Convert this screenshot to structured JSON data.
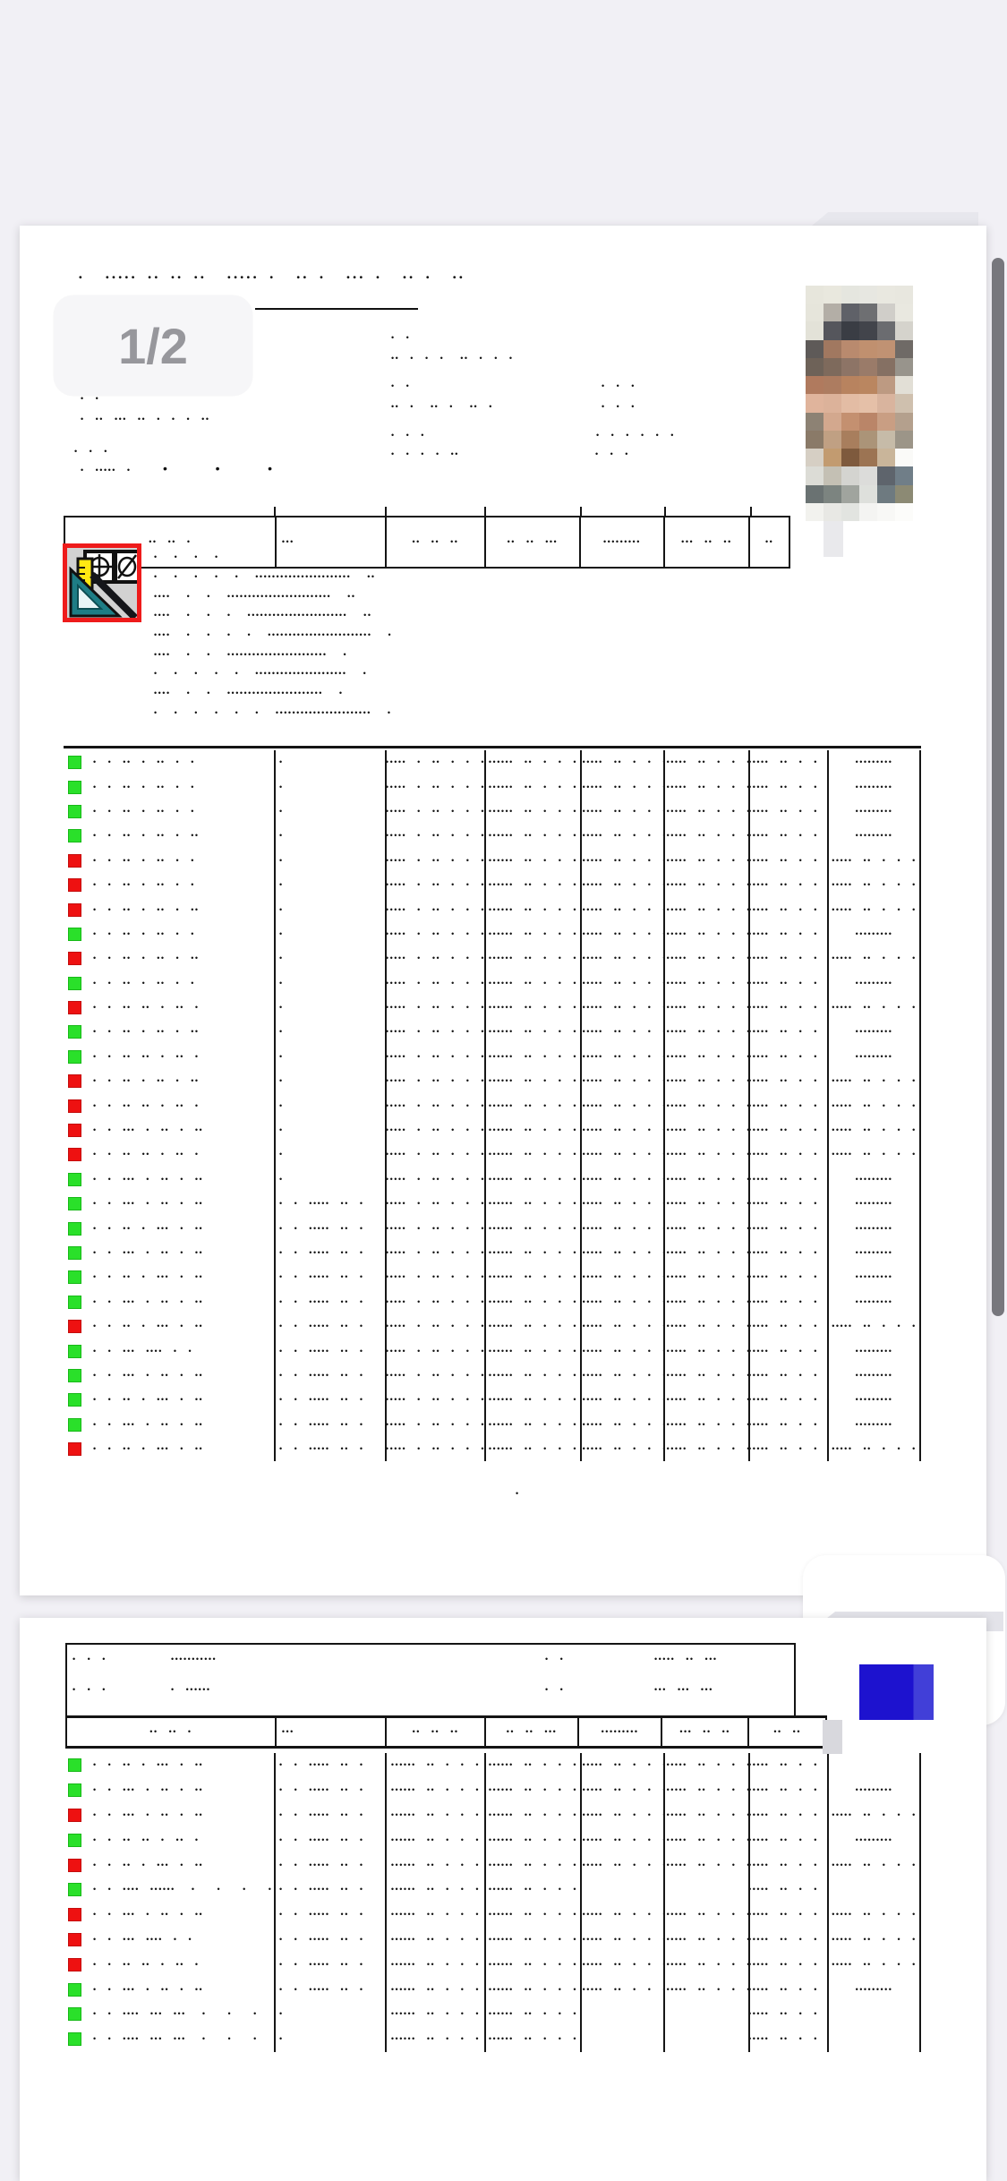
{
  "viewer": {
    "page_indicator": "1/2"
  },
  "colors": {
    "background": "#f1f0f5",
    "page": "#ffffff",
    "status_green": "#2ae02a",
    "status_red": "#ee1111",
    "redaction_blue": "#1d12cf",
    "scrollbar": "#77777d",
    "selection_border": "#ee1b1b",
    "table_line": "#161616"
  },
  "patterns": {
    "dot": "•",
    "c1a": "•  •  ••  •  ••  •  •",
    "c1b": "•  •  ••  •  ••  •  ••",
    "c1c": "•  •  ••  ••  •  ••  •",
    "c1d": "•  •  •••  •  ••  •  ••",
    "c1e": "•  •  ••  •  •••  •  ••",
    "c1f": "•  •  •••  ••••  •  •",
    "c1w": "•  •  ••••  ••••••   •    •    •    •",
    "c1x": "•  •  ••••  •••  •••   •    •    •",
    "c2p": "•  •  •••••  ••  •",
    "midA": "•••••  •  ••  •  •  •",
    "midB": "••••••  ••  •  •  •",
    "short": "•••••••••",
    "long": "•••••  ••  •  •  •"
  },
  "page1": {
    "title_dots": "•  ••••• •• •• ••  ••••• •  •• •  ••• •  •• •  ••",
    "header_left": {
      "l1": "•  •",
      "l2": "•  ••  •••  ••  •  •  •  ••",
      "l3": "•  •  •",
      "l4a": "•  •••••  •",
      "l4b": "•   •   •"
    },
    "header_mid": {
      "m1": "•  •",
      "m2": "••  •  •  •   ••  •  •  •",
      "m3": "•  •",
      "m4": "••  •   ••  •   ••  •",
      "m5": "•  •  •",
      "m6": "•  •  •  •  ••"
    },
    "header_right": {
      "r1": "•  •  •",
      "r2": "•  •  •",
      "r3": "•  •  •  •  •  •",
      "r4": "•  •  •"
    },
    "info_labels": [
      "••  ••  •",
      "•••",
      "••  ••  ••",
      "••  ••  •••",
      "•••••••••",
      "•••  ••  ••",
      "••"
    ],
    "icon_block": {
      "icon": "drafting-tools-ole-object",
      "lines": [
        "•   •   •   •",
        "•   •   •   •   •   •••••••••••••••••••••••   ••",
        "••••   •   •   •••••••••••••••••••••••••   ••",
        "••••   •   •   •   ••••••••••••••••••••••••   ••",
        "••••   •   •   •   •   •••••••••••••••••••••••••   •",
        "••••   •   •   ••••••••••••••••••••••••   •",
        "•   •   •   •   •   ••••••••••••••••••••••   •",
        "••••   •   •   •••••••••••••••••••••••   •",
        "•   •   •   •   •   •   •••••••••••••••••••••••   •"
      ]
    },
    "photo": {
      "cells": [
        [
          "#e7e6dc",
          "#e9e8de",
          "#e5e6df",
          "#e7e7e1",
          "#e9e8e0",
          "#e8e7df"
        ],
        [
          "#e6e5db",
          "#b3aea6",
          "#5f6168",
          "#6e6f72",
          "#d0cec9",
          "#e9e8e0"
        ],
        [
          "#e3e2d8",
          "#55565c",
          "#3a3d44",
          "#42444b",
          "#6b6c70",
          "#d5d3cc"
        ],
        [
          "#5e5a58",
          "#a17860",
          "#b98a6e",
          "#c0906f",
          "#c09273",
          "#6f6a66"
        ],
        [
          "#6e6258",
          "#7e6a5c",
          "#8d7466",
          "#9a7b69",
          "#857063",
          "#98948c"
        ],
        [
          "#b07a5e",
          "#ad7c60",
          "#b8835f",
          "#ba8660",
          "#bd9a82",
          "#e2dfd6"
        ],
        [
          "#e0b49c",
          "#dcb29a",
          "#e3bca4",
          "#e5c0a8",
          "#d9b49e",
          "#cfc0ae"
        ],
        [
          "#8d8274",
          "#d3a88e",
          "#c49070",
          "#ba8568",
          "#c99e83",
          "#b4a08d"
        ],
        [
          "#8a7a68",
          "#c0a083",
          "#a87e5d",
          "#ab9478",
          "#c6bba8",
          "#9c9588"
        ],
        [
          "#d6cfc4",
          "#c29b70",
          "#7e5a3d",
          "#9c7453",
          "#c9b59a",
          "#fafaf8"
        ],
        [
          "#dcdcd6",
          "#c4c0b4",
          "#d4d4d0",
          "#dcdcda",
          "#5e646c",
          "#707e88"
        ],
        [
          "#6a7272",
          "#7c8480",
          "#a0a49e",
          "#dee0dc",
          "#6e7a80",
          "#8c8a74"
        ],
        [
          "#f2f2ee",
          "#e8e8e4",
          "#e2e4e0",
          "#f4f4f2",
          "#f8f8f6",
          "#fcfcfa"
        ]
      ]
    },
    "table": {
      "rows": [
        {
          "s": "g",
          "c1": "c1a",
          "c2": "dot",
          "c3": "midA",
          "c4": "midB",
          "c5": "midB",
          "c6": "midB",
          "c7": "midB",
          "c8": "short"
        },
        {
          "s": "g",
          "c1": "c1a",
          "c2": "dot",
          "c3": "midA",
          "c4": "midB",
          "c5": "midB",
          "c6": "midB",
          "c7": "midB",
          "c8": "short"
        },
        {
          "s": "g",
          "c1": "c1a",
          "c2": "dot",
          "c3": "midA",
          "c4": "midB",
          "c5": "midB",
          "c6": "midB",
          "c7": "midB",
          "c8": "short"
        },
        {
          "s": "g",
          "c1": "c1b",
          "c2": "dot",
          "c3": "midA",
          "c4": "midB",
          "c5": "midB",
          "c6": "midB",
          "c7": "midB",
          "c8": "short"
        },
        {
          "s": "r",
          "c1": "c1a",
          "c2": "dot",
          "c3": "midA",
          "c4": "midB",
          "c5": "midB",
          "c6": "midB",
          "c7": "midB",
          "c8": "long"
        },
        {
          "s": "r",
          "c1": "c1a",
          "c2": "dot",
          "c3": "midA",
          "c4": "midB",
          "c5": "midB",
          "c6": "midB",
          "c7": "midB",
          "c8": "long"
        },
        {
          "s": "r",
          "c1": "c1b",
          "c2": "dot",
          "c3": "midA",
          "c4": "midB",
          "c5": "midB",
          "c6": "midB",
          "c7": "midB",
          "c8": "long"
        },
        {
          "s": "g",
          "c1": "c1a",
          "c2": "dot",
          "c3": "midA",
          "c4": "midB",
          "c5": "midB",
          "c6": "midB",
          "c7": "midB",
          "c8": "short"
        },
        {
          "s": "r",
          "c1": "c1b",
          "c2": "dot",
          "c3": "midA",
          "c4": "midB",
          "c5": "midB",
          "c6": "midB",
          "c7": "midB",
          "c8": "long"
        },
        {
          "s": "g",
          "c1": "c1a",
          "c2": "dot",
          "c3": "midA",
          "c4": "midB",
          "c5": "midB",
          "c6": "midB",
          "c7": "midB",
          "c8": "short"
        },
        {
          "s": "r",
          "c1": "c1c",
          "c2": "dot",
          "c3": "midA",
          "c4": "midB",
          "c5": "midB",
          "c6": "midB",
          "c7": "midB",
          "c8": "long"
        },
        {
          "s": "g",
          "c1": "c1b",
          "c2": "dot",
          "c3": "midA",
          "c4": "midB",
          "c5": "midB",
          "c6": "midB",
          "c7": "midB",
          "c8": "short"
        },
        {
          "s": "g",
          "c1": "c1c",
          "c2": "dot",
          "c3": "midA",
          "c4": "midB",
          "c5": "midB",
          "c6": "midB",
          "c7": "midB",
          "c8": "short"
        },
        {
          "s": "r",
          "c1": "c1b",
          "c2": "dot",
          "c3": "midA",
          "c4": "midB",
          "c5": "midB",
          "c6": "midB",
          "c7": "midB",
          "c8": "long"
        },
        {
          "s": "r",
          "c1": "c1c",
          "c2": "dot",
          "c3": "midA",
          "c4": "midB",
          "c5": "midB",
          "c6": "midB",
          "c7": "midB",
          "c8": "long"
        },
        {
          "s": "r",
          "c1": "c1d",
          "c2": "dot",
          "c3": "midA",
          "c4": "midB",
          "c5": "midB",
          "c6": "midB",
          "c7": "midB",
          "c8": "long"
        },
        {
          "s": "r",
          "c1": "c1c",
          "c2": "dot",
          "c3": "midA",
          "c4": "midB",
          "c5": "midB",
          "c6": "midB",
          "c7": "midB",
          "c8": "long"
        },
        {
          "s": "g",
          "c1": "c1d",
          "c2": "dot",
          "c3": "midA",
          "c4": "midB",
          "c5": "midB",
          "c6": "midB",
          "c7": "midB",
          "c8": "short"
        },
        {
          "s": "g",
          "c1": "c1d",
          "c2": "c2p",
          "c3": "midA",
          "c4": "midB",
          "c5": "midB",
          "c6": "midB",
          "c7": "midB",
          "c8": "short"
        },
        {
          "s": "g",
          "c1": "c1e",
          "c2": "c2p",
          "c3": "midA",
          "c4": "midB",
          "c5": "midB",
          "c6": "midB",
          "c7": "midB",
          "c8": "short"
        },
        {
          "s": "g",
          "c1": "c1d",
          "c2": "c2p",
          "c3": "midA",
          "c4": "midB",
          "c5": "midB",
          "c6": "midB",
          "c7": "midB",
          "c8": "short"
        },
        {
          "s": "g",
          "c1": "c1e",
          "c2": "c2p",
          "c3": "midA",
          "c4": "midB",
          "c5": "midB",
          "c6": "midB",
          "c7": "midB",
          "c8": "short"
        },
        {
          "s": "g",
          "c1": "c1d",
          "c2": "c2p",
          "c3": "midA",
          "c4": "midB",
          "c5": "midB",
          "c6": "midB",
          "c7": "midB",
          "c8": "short"
        },
        {
          "s": "r",
          "c1": "c1e",
          "c2": "c2p",
          "c3": "midA",
          "c4": "midB",
          "c5": "midB",
          "c6": "midB",
          "c7": "midB",
          "c8": "long"
        },
        {
          "s": "g",
          "c1": "c1f",
          "c2": "c2p",
          "c3": "midA",
          "c4": "midB",
          "c5": "midB",
          "c6": "midB",
          "c7": "midB",
          "c8": "short"
        },
        {
          "s": "g",
          "c1": "c1d",
          "c2": "c2p",
          "c3": "midA",
          "c4": "midB",
          "c5": "midB",
          "c6": "midB",
          "c7": "midB",
          "c8": "short"
        },
        {
          "s": "g",
          "c1": "c1e",
          "c2": "c2p",
          "c3": "midA",
          "c4": "midB",
          "c5": "midB",
          "c6": "midB",
          "c7": "midB",
          "c8": "short"
        },
        {
          "s": "g",
          "c1": "c1d",
          "c2": "c2p",
          "c3": "midA",
          "c4": "midB",
          "c5": "midB",
          "c6": "midB",
          "c7": "midB",
          "c8": "short"
        },
        {
          "s": "r",
          "c1": "c1e",
          "c2": "c2p",
          "c3": "midA",
          "c4": "midB",
          "c5": "midB",
          "c6": "midB",
          "c7": "midB",
          "c8": "long"
        }
      ]
    },
    "footer_dot": "•"
  },
  "page2": {
    "header_box": {
      "r1a": "•  •  •",
      "r1b": "•••••••••••",
      "r1c": "•  •",
      "r1d": "•••••  ••  •••",
      "r2a": "•  •  •",
      "r2b": "•  ••••••",
      "r2c": "•  •",
      "r2d": "•••  •••  •••"
    },
    "info_labels": [
      "••  ••  •",
      "•••",
      "••  ••  ••",
      "••  ••  •••",
      "•••••••••",
      "•••  ••  ••",
      "••  ••"
    ],
    "table": {
      "rows": [
        {
          "s": "g",
          "c1": "c1e",
          "c2": "c2p",
          "c3": "midB",
          "c4": "midB",
          "c5": "midB",
          "c6": "midB",
          "c7": "midB",
          "c8": ""
        },
        {
          "s": "g",
          "c1": "c1d",
          "c2": "c2p",
          "c3": "midB",
          "c4": "midB",
          "c5": "midB",
          "c6": "midB",
          "c7": "midB",
          "c8": "short"
        },
        {
          "s": "r",
          "c1": "c1d",
          "c2": "c2p",
          "c3": "midB",
          "c4": "midB",
          "c5": "midB",
          "c6": "midB",
          "c7": "midB",
          "c8": "long"
        },
        {
          "s": "g",
          "c1": "c1c",
          "c2": "c2p",
          "c3": "midB",
          "c4": "midB",
          "c5": "midB",
          "c6": "midB",
          "c7": "midB",
          "c8": "short"
        },
        {
          "s": "r",
          "c1": "c1e",
          "c2": "c2p",
          "c3": "midB",
          "c4": "midB",
          "c5": "midB",
          "c6": "midB",
          "c7": "midB",
          "c8": "long"
        },
        {
          "s": "g",
          "c1": "c1w",
          "c2": "c2p",
          "c3": "midB",
          "c4": "midB",
          "c5": "",
          "c6": "",
          "c7": "midB",
          "c8": ""
        },
        {
          "s": "r",
          "c1": "c1d",
          "c2": "c2p",
          "c3": "midB",
          "c4": "midB",
          "c5": "midB",
          "c6": "midB",
          "c7": "midB",
          "c8": "long"
        },
        {
          "s": "r",
          "c1": "c1f",
          "c2": "c2p",
          "c3": "midB",
          "c4": "midB",
          "c5": "midB",
          "c6": "midB",
          "c7": "midB",
          "c8": "long"
        },
        {
          "s": "r",
          "c1": "c1c",
          "c2": "c2p",
          "c3": "midB",
          "c4": "midB",
          "c5": "midB",
          "c6": "midB",
          "c7": "midB",
          "c8": "long"
        },
        {
          "s": "g",
          "c1": "c1d",
          "c2": "c2p",
          "c3": "midB",
          "c4": "midB",
          "c5": "midB",
          "c6": "midB",
          "c7": "midB",
          "c8": "short"
        },
        {
          "s": "g",
          "c1": "c1x",
          "c2": "dot",
          "c3": "midB",
          "c4": "midB",
          "c5": "",
          "c6": "",
          "c7": "midB",
          "c8": ""
        },
        {
          "s": "g",
          "c1": "c1x",
          "c2": "dot",
          "c3": "midB",
          "c4": "midB",
          "c5": "",
          "c6": "",
          "c7": "midB",
          "c8": ""
        }
      ]
    }
  }
}
